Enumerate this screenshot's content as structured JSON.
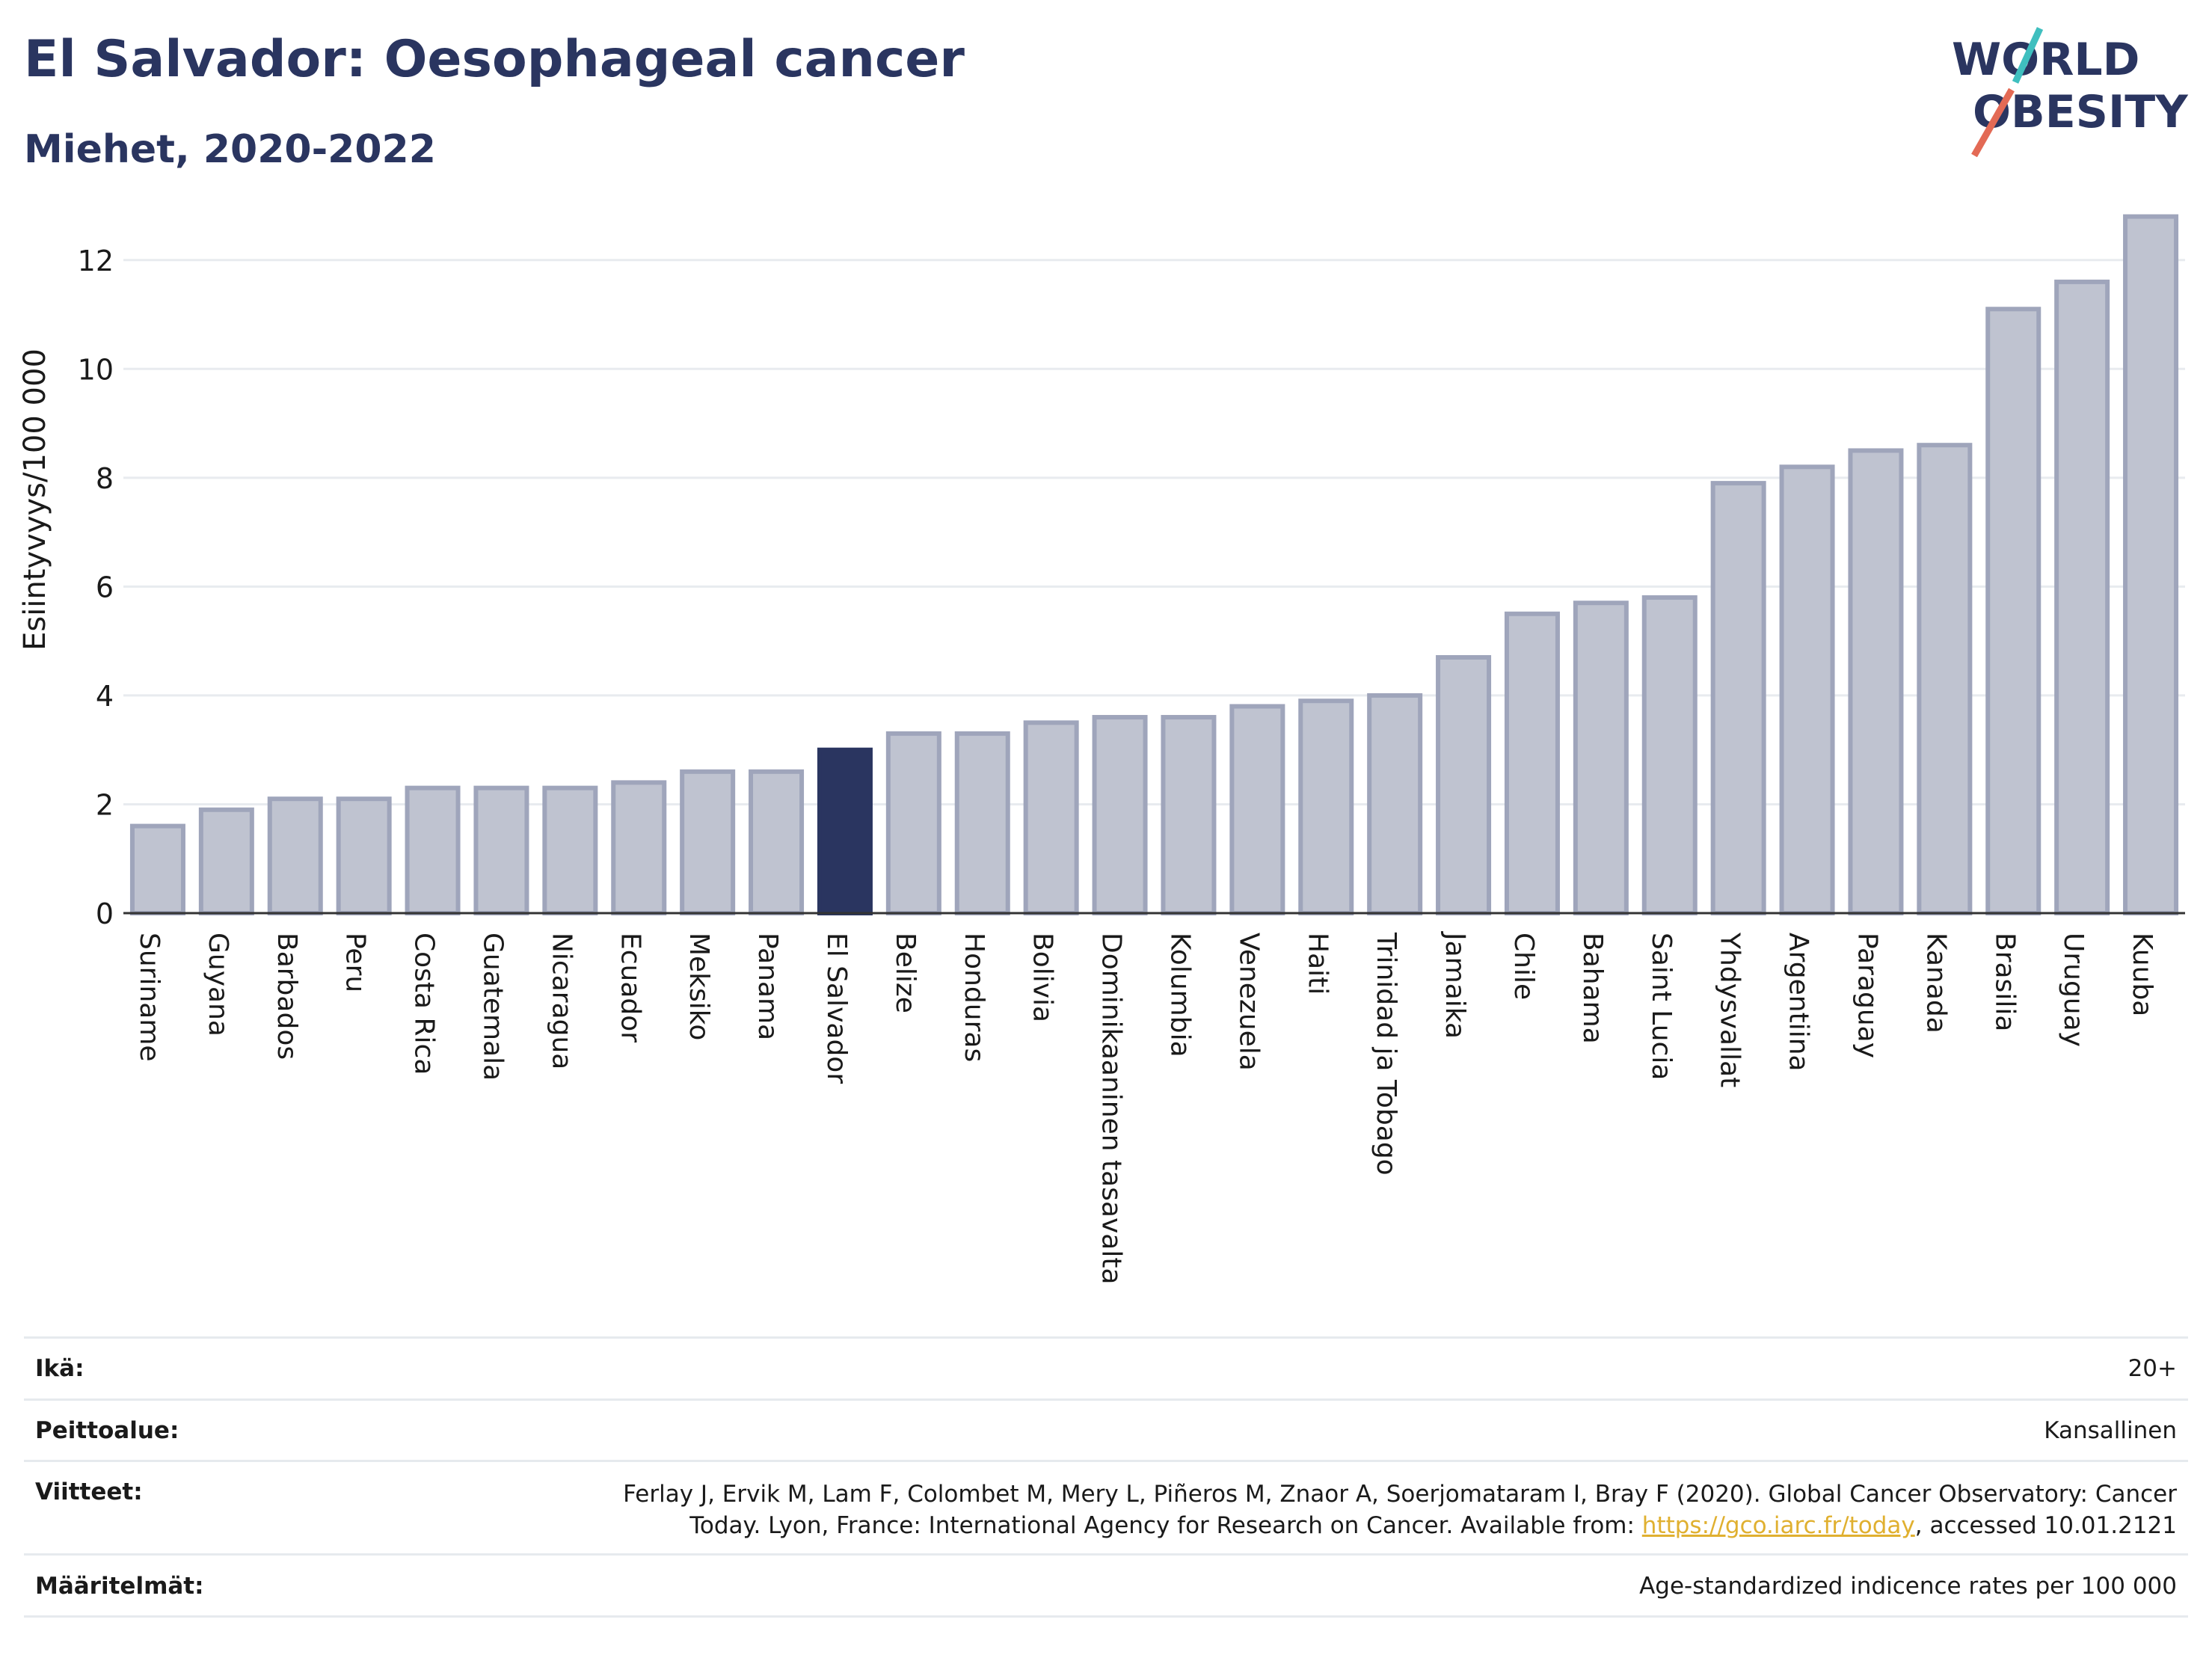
{
  "header": {
    "title": "El Salvador: Oesophageal cancer",
    "subtitle": "Miehet, 2020-2022"
  },
  "logo": {
    "line1": "WORLD",
    "line2": "OBESITY",
    "text_color": "#2a3560",
    "accent1": "#3fbfbf",
    "accent2": "#e36a55"
  },
  "chart_data": {
    "type": "bar",
    "ylabel": "Esiintyvyys/100 000",
    "xlabel": "",
    "ylim": [
      0,
      13
    ],
    "yticks": [
      0,
      2,
      4,
      6,
      8,
      10,
      12
    ],
    "grid": true,
    "highlight": "El Salvador",
    "colors": {
      "bar": "#bfc3d0",
      "bar_border": "#9fa5bb",
      "highlight": "#2a3560",
      "grid": "#e8ebef",
      "axis": "#333333"
    },
    "categories": [
      "Suriname",
      "Guyana",
      "Barbados",
      "Peru",
      "Costa Rica",
      "Guatemala",
      "Nicaragua",
      "Ecuador",
      "Meksiko",
      "Panama",
      "El Salvador",
      "Belize",
      "Honduras",
      "Bolivia",
      "Dominikaaninen tasavalta",
      "Kolumbia",
      "Venezuela",
      "Haiti",
      "Trinidad ja Tobago",
      "Jamaika",
      "Chile",
      "Bahama",
      "Saint Lucia",
      "Yhdysvallat",
      "Argentiina",
      "Paraguay",
      "Kanada",
      "Brasilia",
      "Uruguay",
      "Kuuba"
    ],
    "values": [
      1.6,
      1.9,
      2.1,
      2.1,
      2.3,
      2.3,
      2.3,
      2.4,
      2.6,
      2.6,
      3.0,
      3.3,
      3.3,
      3.5,
      3.6,
      3.6,
      3.8,
      3.9,
      4.0,
      4.7,
      5.5,
      5.7,
      5.8,
      7.9,
      8.2,
      8.5,
      8.6,
      11.1,
      11.6,
      12.8
    ]
  },
  "table": {
    "rows": [
      {
        "key": "Ikä:",
        "value": "20+"
      },
      {
        "key": "Peittoalue:",
        "value": "Kansallinen"
      },
      {
        "key": "Viitteet:",
        "value_line1": "Ferlay J, Ervik M, Lam F, Colombet M, Mery L, Piñeros M, Znaor A, Soerjomataram I, Bray F (2020). Global Cancer Observatory: Cancer",
        "value_line2_pre": "Today. Lyon, France: International Agency for Research on Cancer. Available from: ",
        "link": "https://gco.iarc.fr/today",
        "value_line2_post": ", accessed 10.01.2121"
      },
      {
        "key": "Määritelmät:",
        "value": "Age-standardized indicence rates per 100 000"
      }
    ]
  }
}
